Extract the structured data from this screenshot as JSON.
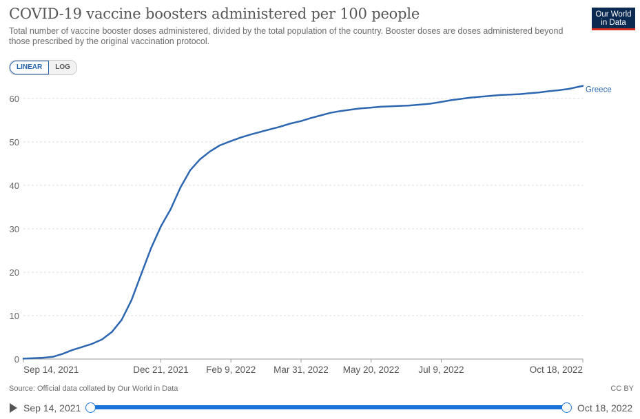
{
  "title": "COVID-19 vaccine boosters administered per 100 people",
  "subtitle": "Total number of vaccine booster doses administered, divided by the total population of the country. Booster doses are doses administered beyond those prescribed by the original vaccination protocol.",
  "logo": {
    "line1": "Our World",
    "line2": "in Data"
  },
  "scale_toggle": {
    "linear": "LINEAR",
    "log": "LOG",
    "selected": "LINEAR"
  },
  "source": "Source: Official data collated by Our World in Data",
  "license": "CC BY",
  "timeline": {
    "start": "Sep 14, 2021",
    "end": "Oct 18, 2022"
  },
  "colors": {
    "series": "#2d67b1",
    "grid": "#dddddd",
    "slider": "#1a73d9"
  },
  "chart_data": {
    "type": "line",
    "title": "COVID-19 vaccine boosters administered per 100 people",
    "x_start": "2021-09-14",
    "x_end": "2022-10-18",
    "x_ticks": [
      "Sep 14, 2021",
      "Dec 21, 2021",
      "Feb 9, 2022",
      "Mar 31, 2022",
      "May 20, 2022",
      "Jul 9, 2022",
      "Oct 18, 2022"
    ],
    "x_tick_dates": [
      "2021-09-14",
      "2021-12-21",
      "2022-02-09",
      "2022-03-31",
      "2022-05-20",
      "2022-07-09",
      "2022-10-18"
    ],
    "y_ticks": [
      0,
      10,
      20,
      30,
      40,
      50,
      60
    ],
    "ylim": [
      0,
      63
    ],
    "grid": "horizontal dashed",
    "series": [
      {
        "name": "Greece",
        "x": [
          "2021-09-14",
          "2021-09-21",
          "2021-09-28",
          "2021-10-05",
          "2021-10-12",
          "2021-10-19",
          "2021-10-26",
          "2021-11-02",
          "2021-11-09",
          "2021-11-16",
          "2021-11-23",
          "2021-11-30",
          "2021-12-07",
          "2021-12-14",
          "2021-12-21",
          "2021-12-28",
          "2022-01-04",
          "2022-01-11",
          "2022-01-18",
          "2022-01-25",
          "2022-02-01",
          "2022-02-09",
          "2022-02-16",
          "2022-02-23",
          "2022-03-02",
          "2022-03-09",
          "2022-03-16",
          "2022-03-23",
          "2022-03-31",
          "2022-04-07",
          "2022-04-14",
          "2022-04-21",
          "2022-04-28",
          "2022-05-05",
          "2022-05-12",
          "2022-05-20",
          "2022-05-27",
          "2022-06-03",
          "2022-06-10",
          "2022-06-17",
          "2022-06-24",
          "2022-07-01",
          "2022-07-09",
          "2022-07-16",
          "2022-07-23",
          "2022-07-30",
          "2022-08-06",
          "2022-08-13",
          "2022-08-20",
          "2022-08-27",
          "2022-09-03",
          "2022-09-10",
          "2022-09-17",
          "2022-09-24",
          "2022-10-01",
          "2022-10-08",
          "2022-10-15",
          "2022-10-18"
        ],
        "y": [
          0.1,
          0.2,
          0.3,
          0.5,
          1.2,
          2.1,
          2.8,
          3.5,
          4.5,
          6.2,
          9.0,
          13.5,
          19.5,
          25.5,
          30.5,
          34.5,
          39.5,
          43.5,
          46.0,
          47.8,
          49.2,
          50.2,
          51.0,
          51.7,
          52.3,
          52.9,
          53.5,
          54.2,
          54.8,
          55.5,
          56.1,
          56.7,
          57.1,
          57.4,
          57.7,
          57.9,
          58.1,
          58.2,
          58.3,
          58.4,
          58.6,
          58.8,
          59.2,
          59.6,
          59.9,
          60.2,
          60.4,
          60.6,
          60.8,
          60.9,
          61.0,
          61.2,
          61.4,
          61.7,
          61.9,
          62.2,
          62.7,
          62.9
        ]
      }
    ]
  }
}
